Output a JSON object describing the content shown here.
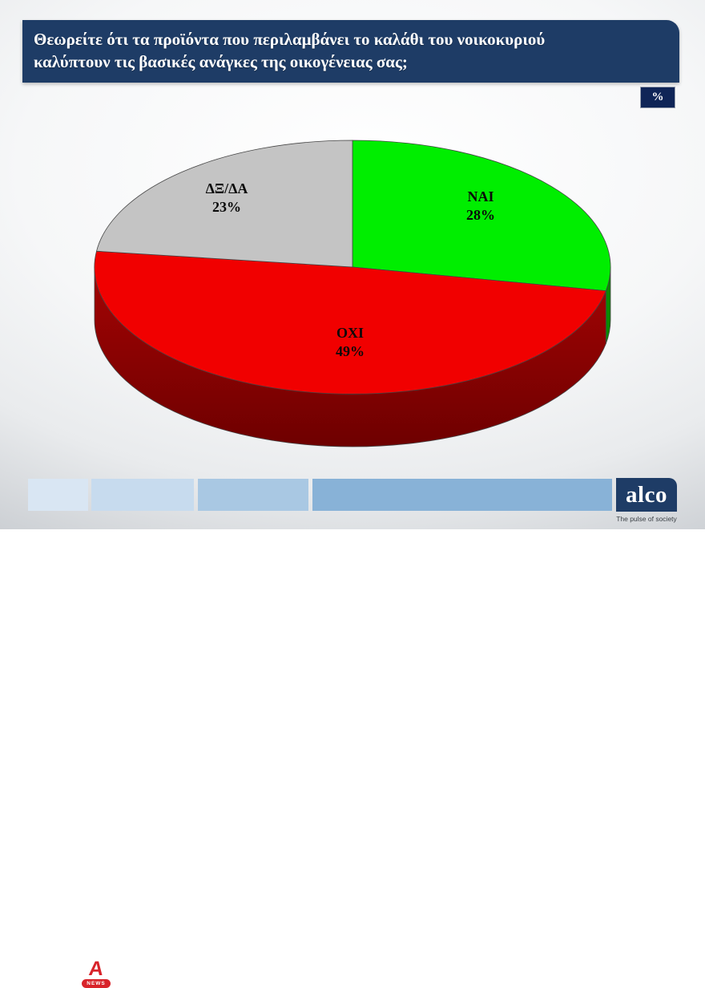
{
  "header": {
    "question_line1": "Θεωρείτε ότι τα προϊόντα που περιλαμβάνει το καλάθι του νοικοκυριού",
    "question_line2": "καλύπτουν τις βασικές ανάγκες της οικογένειας σας;",
    "unit_badge": "%"
  },
  "chart_data": {
    "type": "pie",
    "style": "3d",
    "title": "Θεωρείτε ότι τα προϊόντα που περιλαμβάνει το καλάθι του νοικοκυριού καλύπτουν τις βασικές ανάγκες της οικογένειας σας;",
    "unit": "%",
    "start_angle_deg": 0,
    "direction": "clockwise",
    "legend": "none",
    "labels_on_slices": true,
    "slices": [
      {
        "label": "ΝΑΙ",
        "value": 28,
        "pct_text": "28%",
        "color": "#00ee00",
        "side_color": "#0a8a00"
      },
      {
        "label": "ΟΧΙ",
        "value": 49,
        "pct_text": "49%",
        "color": "#f10000",
        "side_color": "#8b0000",
        "side_gradient": [
          "#a40404",
          "#6e0000"
        ]
      },
      {
        "label": "ΔΞ/ΔΑ",
        "value": 23,
        "pct_text": "23%",
        "color": "#c4c4c4",
        "side_color": "#8f8f8f"
      }
    ]
  },
  "footer": {
    "alpha_letter": "A",
    "alpha_news_label": "NEWS",
    "alco_name": "alco",
    "alco_tagline": "The pulse of society",
    "box_colors": [
      "#d9e6f3",
      "#c7dbee",
      "#a9c8e3",
      "#88b2d7"
    ]
  },
  "colors": {
    "header_bg": "#1e3c66",
    "badge_bg": "#0f2557",
    "alco_bg": "#1e3c66",
    "alpha_red": "#d8232a",
    "outline": "#454545"
  }
}
